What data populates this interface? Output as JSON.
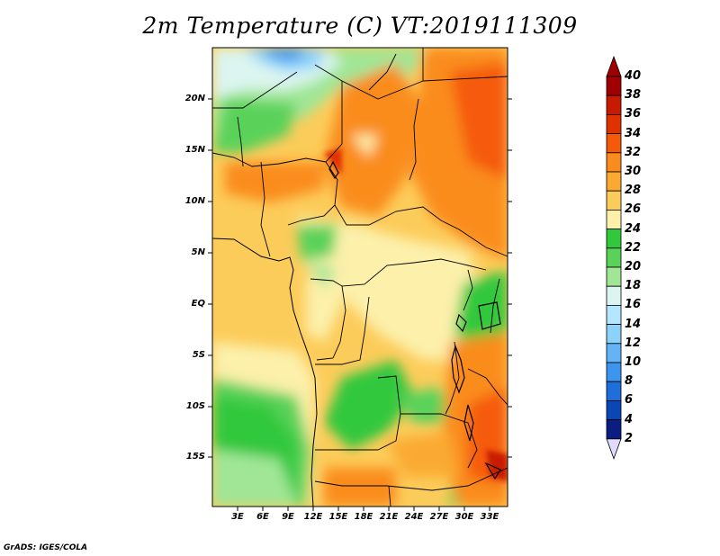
{
  "title": "2m Temperature (C) VT:2019111309",
  "credit": "GrADS: IGES/COLA",
  "map": {
    "lat_labels": [
      "20N",
      "15N",
      "10N",
      "5N",
      "EQ",
      "5S",
      "10S",
      "15S"
    ],
    "lon_labels": [
      "3E",
      "6E",
      "9E",
      "12E",
      "15E",
      "18E",
      "21E",
      "24E",
      "27E",
      "30E",
      "33E"
    ],
    "lon_range": [
      0,
      35
    ],
    "lat_range": [
      -19.5,
      24.5
    ]
  },
  "colorbar": {
    "labels": [
      "40",
      "38",
      "36",
      "34",
      "32",
      "30",
      "28",
      "26",
      "24",
      "22",
      "20",
      "18",
      "16",
      "14",
      "12",
      "10",
      "8",
      "6",
      "4",
      "2"
    ],
    "colors": [
      "#a00000",
      "#c81a00",
      "#e03200",
      "#f55a0a",
      "#fa8c1e",
      "#faaa32",
      "#fccc5a",
      "#fcf0aa",
      "#32c83c",
      "#5ad25a",
      "#a0e696",
      "#dcf5f0",
      "#b4e6ff",
      "#8cd2fa",
      "#64b4f5",
      "#3c96f0",
      "#1e6edc",
      "#0a46b4",
      "#0a1e82"
    ],
    "top_arrow_color": "#a00000",
    "bottom_arrow_color": "#e1dcff"
  }
}
